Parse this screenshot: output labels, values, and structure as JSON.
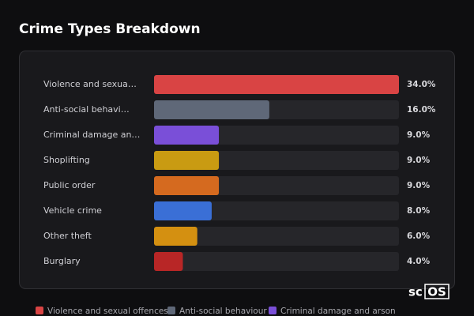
{
  "chart_data": {
    "type": "hbar",
    "title": "Crime Types Breakdown",
    "categories": [
      "Violence and sexua…",
      "Anti-social behavi…",
      "Criminal damage an…",
      "Shoplifting",
      "Public order",
      "Vehicle crime",
      "Other theft",
      "Burglary"
    ],
    "values": [
      34,
      16,
      9,
      9,
      9,
      8,
      6,
      4
    ],
    "value_labels": [
      "34.0%",
      "16.0%",
      "9.0%",
      "9.0%",
      "9.0%",
      "8.0%",
      "6.0%",
      "4.0%"
    ],
    "colors": [
      "#d94444",
      "#5f6878",
      "#7a4fd8",
      "#c99b12",
      "#d56a1f",
      "#3a6fd6",
      "#d49011",
      "#b82626"
    ],
    "xlim": [
      0,
      34
    ],
    "legend": [
      "Violence and sexual offences",
      "Anti-social behaviour",
      "Criminal damage and arson"
    ],
    "watermark": {
      "prefix": "sc",
      "boxed": "OS"
    }
  }
}
